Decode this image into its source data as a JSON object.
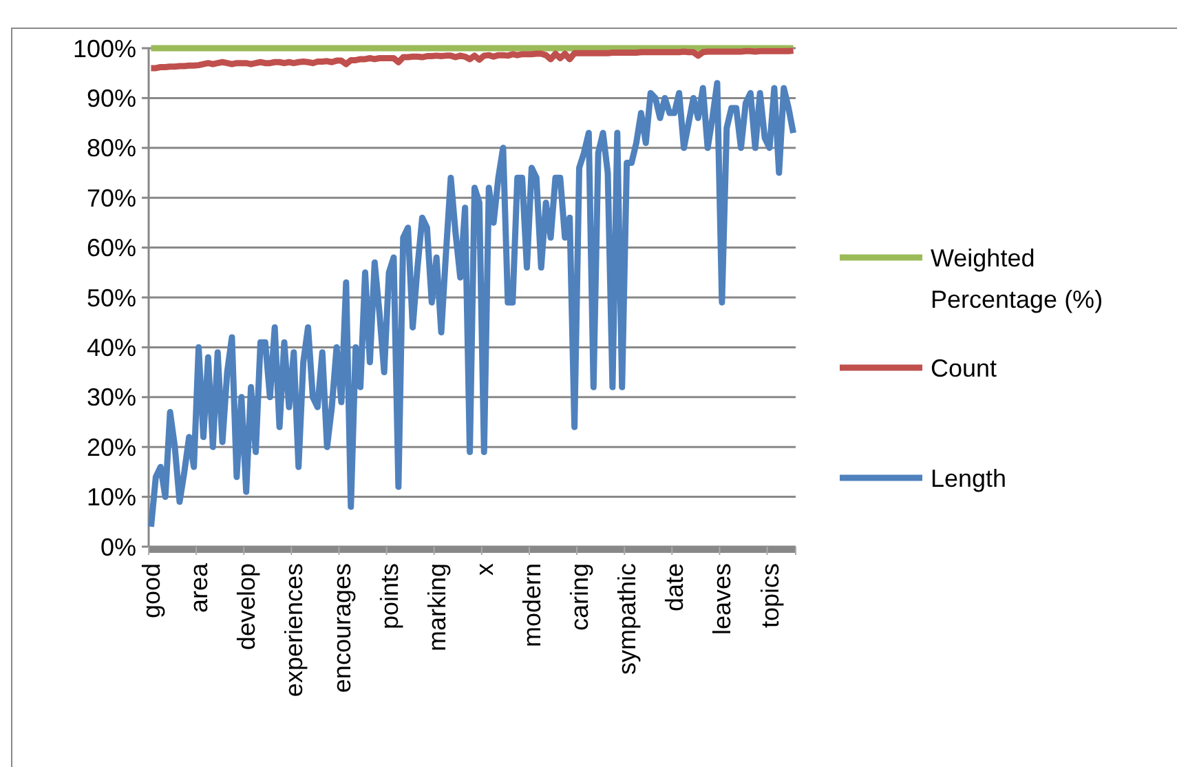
{
  "chart_data": {
    "type": "line",
    "categories": [
      "good",
      null,
      null,
      null,
      null,
      null,
      null,
      null,
      null,
      null,
      "area",
      null,
      null,
      null,
      null,
      null,
      null,
      null,
      null,
      null,
      "develop",
      null,
      null,
      null,
      null,
      null,
      null,
      null,
      null,
      null,
      "experiences",
      null,
      null,
      null,
      null,
      null,
      null,
      null,
      null,
      null,
      "encourages",
      null,
      null,
      null,
      null,
      null,
      null,
      null,
      null,
      null,
      "points",
      null,
      null,
      null,
      null,
      null,
      null,
      null,
      null,
      null,
      "marking",
      null,
      null,
      null,
      null,
      null,
      null,
      null,
      null,
      null,
      "x",
      null,
      null,
      null,
      null,
      null,
      null,
      null,
      null,
      null,
      "modern",
      null,
      null,
      null,
      null,
      null,
      null,
      null,
      null,
      null,
      "caring",
      null,
      null,
      null,
      null,
      null,
      null,
      null,
      null,
      null,
      "sympathic",
      null,
      null,
      null,
      null,
      null,
      null,
      null,
      null,
      null,
      "date",
      null,
      null,
      null,
      null,
      null,
      null,
      null,
      null,
      null,
      "leaves",
      null,
      null,
      null,
      null,
      null,
      null,
      null,
      null,
      null,
      "topics",
      null,
      null,
      null,
      null,
      null
    ],
    "series": [
      {
        "name": "Weighted Percentage (%)",
        "color": "#9bbb59",
        "values": [
          100,
          100,
          100,
          100,
          100,
          100,
          100,
          100,
          100,
          100,
          100,
          100,
          100,
          100,
          100,
          100,
          100,
          100,
          100,
          100,
          100,
          100,
          100,
          100,
          100,
          100,
          100,
          100,
          100,
          100,
          100,
          100,
          100,
          100,
          100,
          100,
          100,
          100,
          100,
          100,
          100,
          100,
          100,
          100,
          100,
          100,
          100,
          100,
          100,
          100,
          100,
          100,
          100,
          100,
          100,
          100,
          100,
          100,
          100,
          100,
          100,
          100,
          100,
          100,
          100,
          100,
          100,
          100,
          100,
          100,
          100,
          100,
          100,
          100,
          100,
          100,
          100,
          100,
          100,
          100,
          100,
          100,
          100,
          100,
          100,
          100,
          100,
          100,
          100,
          100,
          100,
          100,
          100,
          100,
          100,
          100,
          100,
          100,
          100,
          100,
          100,
          100,
          100,
          100,
          100,
          100,
          100,
          100,
          100,
          100,
          100,
          100,
          100,
          100,
          100,
          100,
          100,
          100,
          100,
          100,
          100,
          100,
          100,
          100,
          100,
          100,
          100,
          100,
          100,
          100,
          100,
          100,
          100,
          100,
          100,
          100
        ]
      },
      {
        "name": "Count",
        "color": "#c0504d",
        "values": [
          96,
          96,
          96.2,
          96.2,
          96.3,
          96.3,
          96.4,
          96.4,
          96.5,
          96.5,
          96.6,
          96.8,
          97,
          96.8,
          97,
          97.2,
          97,
          96.8,
          97,
          97,
          97,
          96.8,
          97,
          97.2,
          97,
          97,
          97.2,
          97.2,
          97,
          97.2,
          97,
          97.2,
          97.3,
          97.2,
          97,
          97.3,
          97.3,
          97.4,
          97.2,
          97.5,
          97.5,
          96.8,
          97.6,
          97.6,
          97.8,
          97.8,
          98,
          97.8,
          98,
          98,
          98,
          98,
          97.2,
          98.2,
          98.2,
          98.3,
          98.3,
          98.2,
          98.4,
          98.4,
          98.5,
          98.4,
          98.5,
          98.5,
          98.2,
          98.5,
          98.3,
          97.8,
          98.5,
          97.7,
          98.5,
          98.6,
          98.3,
          98.6,
          98.6,
          98.5,
          98.8,
          98.6,
          98.8,
          98.8,
          98.8,
          98.9,
          98.9,
          98.6,
          97.8,
          98.9,
          98,
          98.9,
          97.8,
          99,
          99,
          99,
          99,
          99,
          99,
          99,
          99,
          99.1,
          99.1,
          99.1,
          99.1,
          99.1,
          99.1,
          99.2,
          99.2,
          99.2,
          99.2,
          99.2,
          99.2,
          99.2,
          99.2,
          99.2,
          99.3,
          99.2,
          99.2,
          98.5,
          99.2,
          99.3,
          99.3,
          99.3,
          99.3,
          99.3,
          99.3,
          99.3,
          99.3,
          99.4,
          99.4,
          99.3,
          99.4,
          99.4,
          99.4,
          99.4,
          99.4,
          99.4,
          99.4,
          99.5
        ]
      },
      {
        "name": "Length",
        "color": "#4f81bd",
        "values": [
          4,
          14,
          16,
          10,
          27,
          20,
          9,
          15,
          22,
          16,
          40,
          22,
          38,
          20,
          39,
          21,
          35,
          42,
          14,
          30,
          11,
          32,
          19,
          41,
          41,
          30,
          44,
          24,
          41,
          28,
          39,
          16,
          37,
          44,
          30,
          28,
          39,
          20,
          28,
          40,
          29,
          53,
          8,
          40,
          32,
          55,
          37,
          57,
          47,
          35,
          55,
          58,
          12,
          62,
          64,
          44,
          56,
          66,
          64,
          49,
          58,
          43,
          59,
          74,
          63,
          54,
          68,
          19,
          72,
          69,
          19,
          72,
          65,
          74,
          80,
          49,
          49,
          74,
          74,
          56,
          76,
          74,
          56,
          69,
          62,
          74,
          74,
          62,
          66,
          24,
          76,
          79,
          83,
          32,
          79,
          83,
          75,
          32,
          83,
          32,
          77,
          77,
          81,
          87,
          81,
          91,
          90,
          86,
          90,
          87,
          87,
          91,
          80,
          85,
          90,
          86,
          92,
          80,
          86,
          93,
          49,
          84,
          88,
          88,
          80,
          89,
          91,
          80,
          91,
          82,
          80,
          92,
          75,
          92,
          88,
          83
        ]
      }
    ],
    "ylim": [
      0,
      100
    ],
    "yticks": [
      {
        "value": 0,
        "label": "0%"
      },
      {
        "value": 10,
        "label": "10%"
      },
      {
        "value": 20,
        "label": "20%"
      },
      {
        "value": 30,
        "label": "30%"
      },
      {
        "value": 40,
        "label": "40%"
      },
      {
        "value": 50,
        "label": "50%"
      },
      {
        "value": 60,
        "label": "60%"
      },
      {
        "value": 70,
        "label": "70%"
      },
      {
        "value": 80,
        "label": "80%"
      },
      {
        "value": 90,
        "label": "90%"
      },
      {
        "value": 100,
        "label": "100%"
      }
    ],
    "grid": "y",
    "legend": "right",
    "marker": "none",
    "line_style": "solid"
  }
}
